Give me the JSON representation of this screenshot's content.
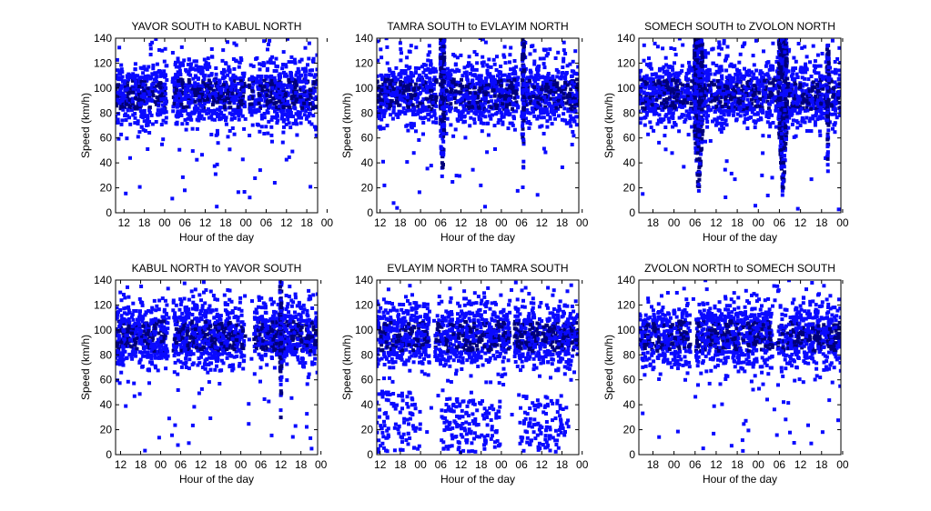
{
  "shared": {
    "xlabel": "Hour of the day",
    "ylabel": "Speed (km/h)",
    "y_ticks": [
      "0",
      "20",
      "40",
      "60",
      "80",
      "100",
      "120",
      "140"
    ],
    "ylim": [
      0,
      140
    ],
    "marker_color": "#0a0aff",
    "marker_dark": "#00007a"
  },
  "chart_data": [
    {
      "type": "scatter",
      "title": "YAVOR SOUTH to KABUL NORTH",
      "x_ticks": [
        "12",
        "18",
        "00",
        "06",
        "12",
        "18",
        "00",
        "06",
        "12",
        "18",
        "00"
      ],
      "x_first_tick_hour": 12,
      "x_range_hours": [
        9.5,
        69.2
      ],
      "ylim": [
        0,
        140
      ],
      "free_flow_gaps": [
        {
          "hour": 25.5,
          "width": 1.7
        },
        {
          "hour": 48.3,
          "width": 1.2
        }
      ],
      "congestion_dips": [],
      "density_scale": 1.1
    },
    {
      "type": "scatter",
      "title": "TAMRA SOUTH to EVLAYIM NORTH",
      "x_ticks": [
        "12",
        "18",
        "00",
        "06",
        "12",
        "18",
        "00",
        "06",
        "12",
        "18",
        "00"
      ],
      "x_first_tick_hour": 12,
      "x_range_hours": [
        11.0,
        71.0
      ],
      "ylim": [
        0,
        140
      ],
      "free_flow_gaps": [
        {
          "hour": 29.7,
          "width": 1.5
        },
        {
          "hour": 53.5,
          "width": 0.9
        }
      ],
      "congestion_dips": [
        {
          "hour": 30.5,
          "width": 1.3,
          "min_speed": 18
        },
        {
          "hour": 54.5,
          "width": 0.6,
          "min_speed": 25
        }
      ],
      "density_scale": 1.0
    },
    {
      "type": "scatter",
      "title": "SOMECH SOUTH to ZVOLON NORTH",
      "x_ticks": [
        "18",
        "00",
        "06",
        "12",
        "18",
        "00",
        "06",
        "12",
        "18",
        "00"
      ],
      "x_first_tick_hour": 18,
      "x_range_hours": [
        14.0,
        71.5
      ],
      "ylim": [
        0,
        140
      ],
      "free_flow_gaps": [
        {
          "hour": 31.0,
          "width": 2.5
        },
        {
          "hour": 55.0,
          "width": 2.5
        }
      ],
      "congestion_dips": [
        {
          "hour": 31.0,
          "width": 2.4,
          "min_speed": 11
        },
        {
          "hour": 55.0,
          "width": 2.4,
          "min_speed": 12
        },
        {
          "hour": 67.8,
          "width": 0.6,
          "min_speed": 28
        }
      ],
      "density_scale": 1.0
    },
    {
      "type": "scatter",
      "title": "KABUL NORTH to YAVOR SOUTH",
      "x_ticks": [
        "12",
        "18",
        "00",
        "06",
        "12",
        "18",
        "00",
        "06",
        "12",
        "18",
        "00"
      ],
      "x_first_tick_hour": 12,
      "x_range_hours": [
        10.5,
        71.0
      ],
      "ylim": [
        0,
        140
      ],
      "free_flow_gaps": [
        {
          "hour": 27.0,
          "width": 1.6
        },
        {
          "hour": 50.5,
          "width": 3.0
        }
      ],
      "congestion_dips": [
        {
          "hour": 60.0,
          "width": 0.6,
          "min_speed": 18
        }
      ],
      "density_scale": 1.1
    },
    {
      "type": "scatter",
      "title": "EVLAYIM NORTH to TAMRA SOUTH",
      "x_ticks": [
        "12",
        "18",
        "00",
        "06",
        "12",
        "18",
        "00",
        "06",
        "12",
        "18",
        "00"
      ],
      "x_first_tick_hour": 12,
      "x_range_hours": [
        11.0,
        71.0
      ],
      "ylim": [
        0,
        140
      ],
      "free_flow_gaps": [
        {
          "hour": 27.5,
          "width": 1.5
        },
        {
          "hour": 51.3,
          "width": 1.2
        }
      ],
      "congestion_dips": [],
      "low_speed_bands": [
        {
          "from_hour": 11.0,
          "to_hour": 24.0,
          "y_max": 50,
          "count": 90
        },
        {
          "from_hour": 30.0,
          "to_hour": 48.0,
          "y_max": 45,
          "count": 150
        },
        {
          "from_hour": 53.0,
          "to_hour": 68.0,
          "y_max": 48,
          "count": 110
        }
      ],
      "density_scale": 1.0
    },
    {
      "type": "scatter",
      "title": "ZVOLON NORTH to SOMECH SOUTH",
      "x_ticks": [
        "18",
        "00",
        "06",
        "12",
        "18",
        "00",
        "06",
        "12",
        "18",
        "00"
      ],
      "x_first_tick_hour": 18,
      "x_range_hours": [
        14.0,
        71.5
      ],
      "ylim": [
        0,
        140
      ],
      "free_flow_gaps": [
        {
          "hour": 29.5,
          "width": 1.6
        },
        {
          "hour": 52.8,
          "width": 1.5
        }
      ],
      "congestion_dips": [],
      "density_scale": 1.05
    }
  ]
}
